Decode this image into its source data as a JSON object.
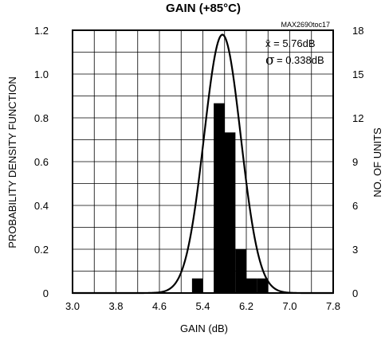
{
  "chart_data": {
    "type": "bar",
    "title": "GAIN (+85°C)",
    "figure_id": "MAX2690toc17",
    "xlabel": "GAIN (dB)",
    "ylabel_left": "PROBABILITY DENSITY FUNCTION",
    "ylabel_right": "NO. OF UNITS",
    "xlim": [
      3.0,
      7.8
    ],
    "ylim_left": [
      0,
      1.2
    ],
    "ylim_right": [
      0,
      18
    ],
    "grid": true,
    "x_ticks": [
      "3.0",
      "3.8",
      "4.6",
      "5.4",
      "6.2",
      "7.0",
      "7.8"
    ],
    "y_ticks_left": [
      "0",
      "0.2",
      "0.4",
      "0.6",
      "0.8",
      "1.0",
      "1.2"
    ],
    "y_ticks_right": [
      "0",
      "3",
      "6",
      "9",
      "12",
      "15",
      "18"
    ],
    "stats": {
      "mean_label": "x̄ = 5.76dB",
      "sigma_symbol": "σ",
      "sigma_label": "= 0.338dB"
    },
    "histogram": {
      "bin_width": 0.2,
      "bins": [
        {
          "x0": 5.2,
          "x1": 5.4,
          "units": 1
        },
        {
          "x0": 5.6,
          "x1": 5.8,
          "units": 13
        },
        {
          "x0": 5.8,
          "x1": 6.0,
          "units": 11
        },
        {
          "x0": 6.0,
          "x1": 6.2,
          "units": 3
        },
        {
          "x0": 6.2,
          "x1": 6.4,
          "units": 1
        },
        {
          "x0": 6.4,
          "x1": 6.6,
          "units": 1
        }
      ]
    },
    "pdf_curve": {
      "mean": 5.76,
      "sigma": 0.338,
      "peak": 1.18
    }
  }
}
